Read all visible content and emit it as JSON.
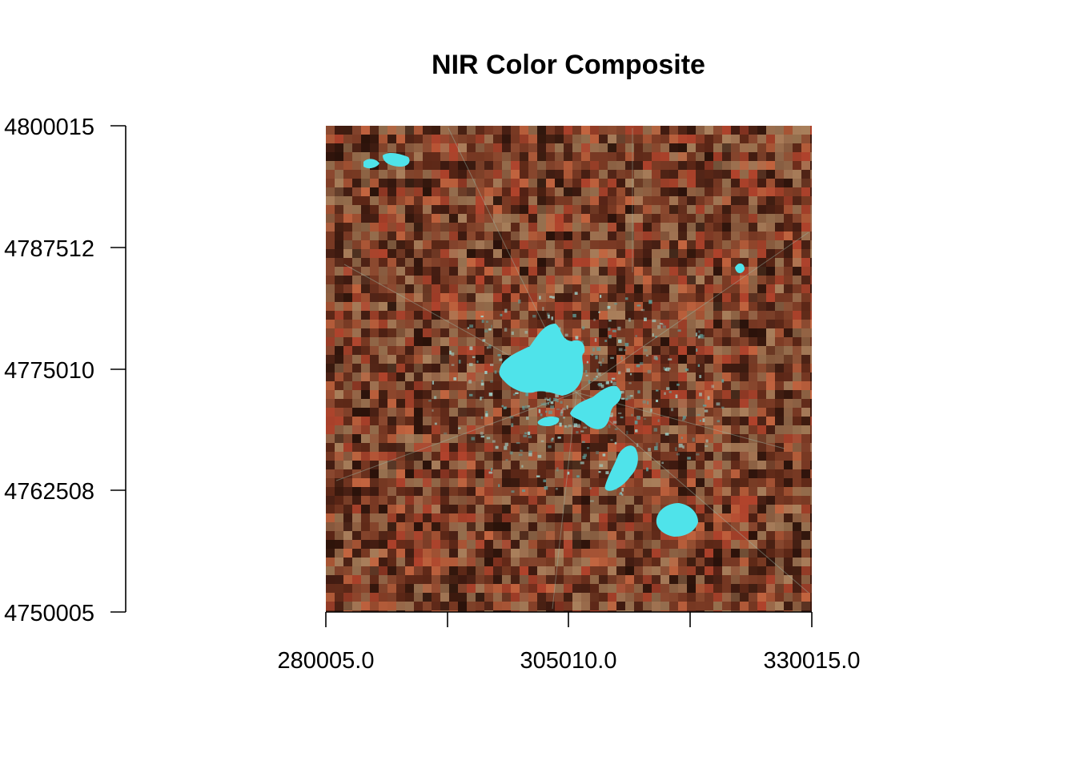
{
  "title": "NIR Color Composite",
  "chart_data": {
    "type": "raster-image",
    "title": "NIR Color Composite",
    "x_axis": {
      "range": [
        280005.0,
        330015.0
      ],
      "ticks": [
        280005.0,
        292507.5,
        305010.0,
        317512.5,
        330015.0
      ],
      "tick_labels": [
        "280005.0",
        "",
        "305010.0",
        "",
        "330015.0"
      ]
    },
    "y_axis": {
      "range": [
        4750005,
        4800015
      ],
      "ticks": [
        4750005,
        4762508,
        4775010,
        4787512,
        4800015
      ],
      "tick_labels": [
        "4750005",
        "4762508",
        "4775010",
        "4787512",
        "4800015"
      ]
    },
    "colors": {
      "land": "#7a3a24",
      "field_dark": "#3e1a10",
      "field_red": "#b0432c",
      "field_tan": "#a9805c",
      "water": "#4de0e8",
      "urban": "#5f9e9a"
    }
  }
}
